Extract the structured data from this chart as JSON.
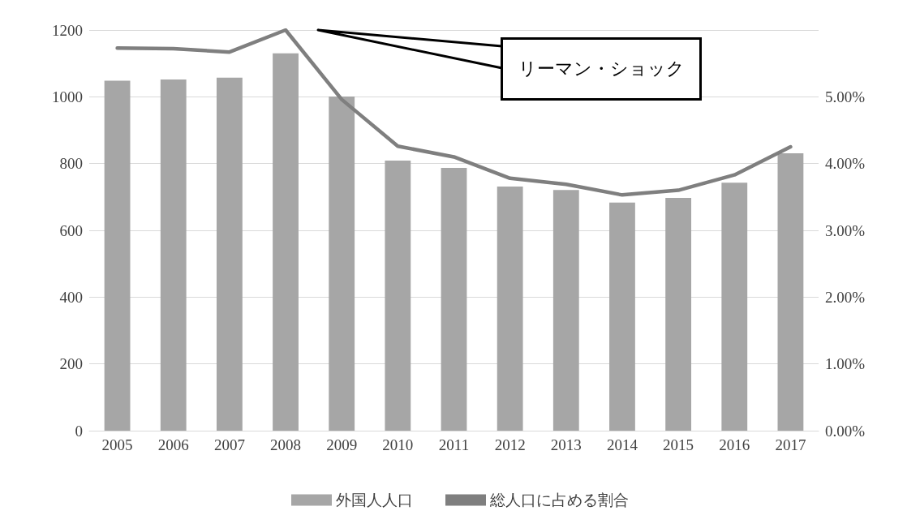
{
  "chart_data": {
    "type": "bar",
    "categories": [
      "2005",
      "2006",
      "2007",
      "2008",
      "2009",
      "2010",
      "2011",
      "2012",
      "2013",
      "2014",
      "2015",
      "2016",
      "2017"
    ],
    "series": [
      {
        "name": "外国人人口",
        "color": "#a6a6a6",
        "values": [
          1048,
          1052,
          1057,
          1130,
          1001,
          809,
          787,
          731,
          721,
          683,
          697,
          743,
          831
        ]
      },
      {
        "name": "総人口に占める割合",
        "type": "line",
        "axis": "y2",
        "color": "#7f7f7f",
        "values": [
          5.73,
          5.72,
          5.67,
          6.0,
          4.96,
          4.26,
          4.1,
          3.78,
          3.69,
          3.53,
          3.6,
          3.83,
          4.25
        ]
      }
    ],
    "ylim": [
      0,
      1200
    ],
    "yticks": [
      0,
      200,
      400,
      600,
      800,
      1000,
      1200
    ],
    "y2lim": [
      0,
      6
    ],
    "y2ticks": [
      {
        "value": 0,
        "label": "0.00%"
      },
      {
        "value": 1,
        "label": "1.00%"
      },
      {
        "value": 2,
        "label": "2.00%"
      },
      {
        "value": 3,
        "label": "3.00%"
      },
      {
        "value": 4,
        "label": "4.00%"
      },
      {
        "value": 5,
        "label": "5.00%"
      },
      {
        "value": 6,
        "label": null
      }
    ],
    "annotations": [
      "リーマン・ショック"
    ],
    "grid": "y",
    "legend": "bottom",
    "marker": "none",
    "line_style": "solid"
  }
}
